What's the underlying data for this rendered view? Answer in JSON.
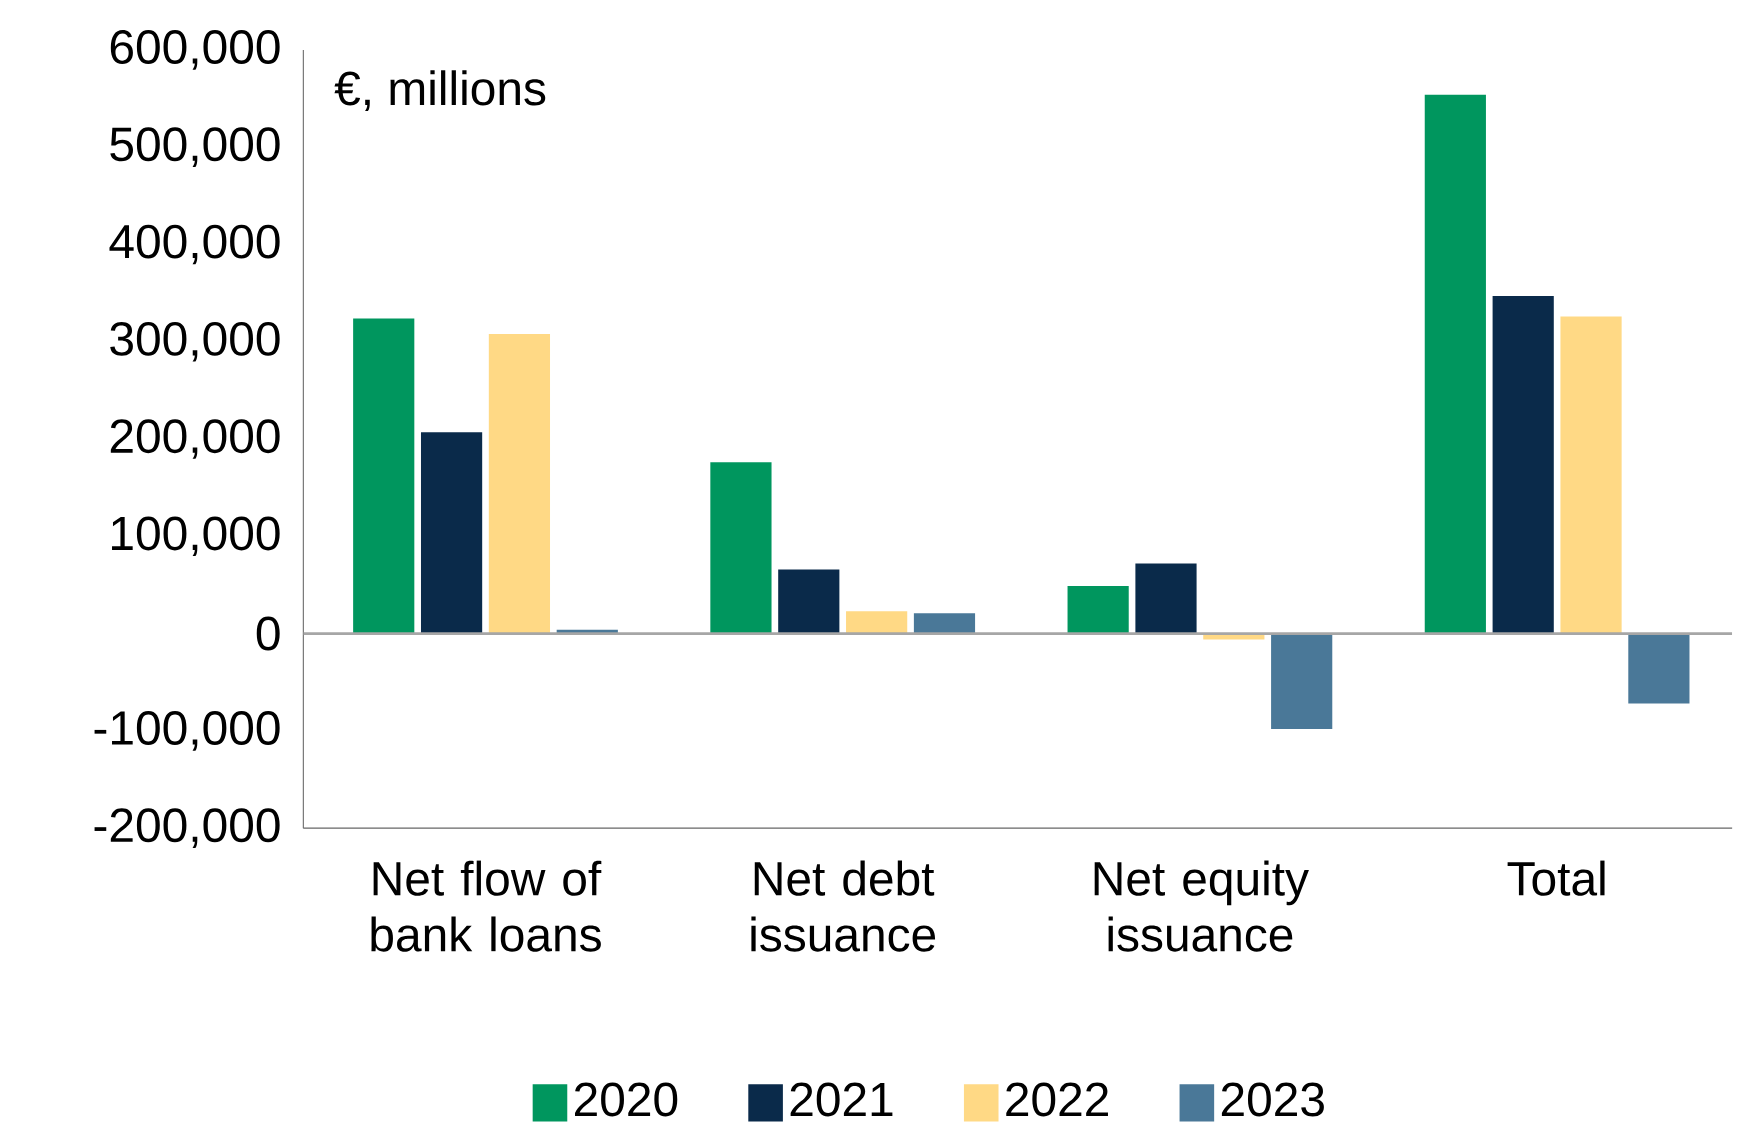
{
  "chart_data": {
    "type": "bar",
    "categories": [
      "Net flow of bank loans",
      "Net debt issuance",
      "Net equity issuance",
      "Total"
    ],
    "series": [
      {
        "name": "2020",
        "color": "#00965e",
        "values": [
          324000,
          176000,
          49000,
          554000
        ]
      },
      {
        "name": "2021",
        "color": "#0a2a4a",
        "values": [
          207000,
          66000,
          72000,
          347000
        ]
      },
      {
        "name": "2022",
        "color": "#ffd985",
        "values": [
          308000,
          23000,
          -6000,
          326000
        ]
      },
      {
        "name": "2023",
        "color": "#4a7898",
        "values": [
          4000,
          21000,
          -98000,
          -72000
        ]
      }
    ],
    "ylim": [
      -200000,
      600000
    ],
    "yticks": [
      {
        "value": -200000,
        "label": "-200,000"
      },
      {
        "value": -100000,
        "label": "-100,000"
      },
      {
        "value": 0,
        "label": "0"
      },
      {
        "value": 100000,
        "label": "100,000"
      },
      {
        "value": 200000,
        "label": "200,000"
      },
      {
        "value": 300000,
        "label": "300,000"
      },
      {
        "value": 400000,
        "label": "400,000"
      },
      {
        "value": 500000,
        "label": "500,000"
      },
      {
        "value": 600000,
        "label": "600,000"
      }
    ],
    "ref_lines": [
      {
        "axis": "y",
        "value": 0,
        "color": "#a6a6a6"
      }
    ],
    "annotations": [
      "€, millions"
    ],
    "legend": "bottom",
    "grid": false
  }
}
